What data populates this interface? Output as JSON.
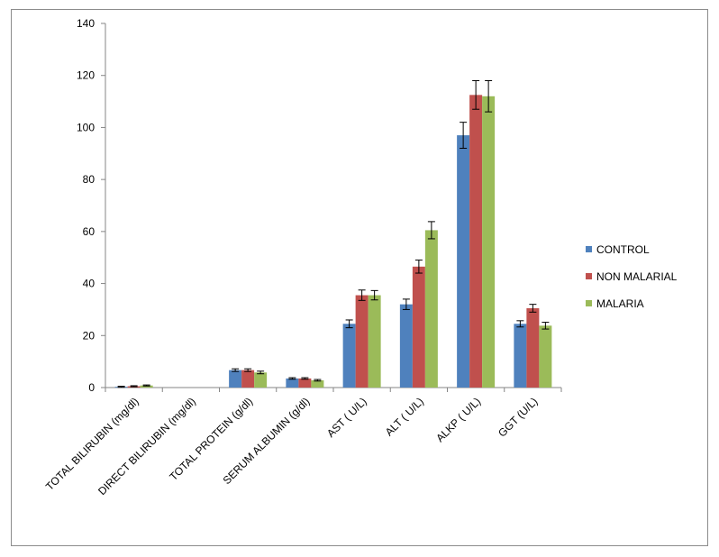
{
  "chart_data": {
    "type": "bar",
    "categories": [
      "TOTAL BILIRUBIN  (mg/dl)",
      "DIRECT BILIRUBIN   (mg/dl)",
      "TOTAL PROTEIN (g/dl)",
      "SERUM ALBUMIN (g/dl)",
      "AST ( U/L)",
      "ALT  ( U/L)",
      "ALKP ( U/L)",
      "GGT (U/L)"
    ],
    "series": [
      {
        "name": "CONTROL",
        "color": "#4f81bd",
        "values": [
          0.3,
          0,
          6.7,
          3.5,
          24.5,
          32,
          97,
          24.5
        ],
        "errors": [
          0.2,
          0,
          0.5,
          0.3,
          1.5,
          2,
          5,
          1.2
        ]
      },
      {
        "name": "NON MALARIAL",
        "color": "#c0504d",
        "values": [
          0.5,
          0,
          6.7,
          3.5,
          35.5,
          46.5,
          112.5,
          30.5
        ],
        "errors": [
          0.2,
          0,
          0.5,
          0.3,
          2,
          2.5,
          5.5,
          1.5
        ]
      },
      {
        "name": "MALARIA",
        "color": "#9bbb59",
        "values": [
          0.8,
          0,
          5.8,
          2.8,
          35.5,
          60.5,
          112,
          23.8
        ],
        "errors": [
          0.2,
          0,
          0.5,
          0.3,
          1.8,
          3.3,
          6,
          1.3
        ]
      }
    ],
    "yticks": [
      "0",
      "20",
      "40",
      "60",
      "80",
      "100",
      "120",
      "140"
    ],
    "ylim": [
      0,
      140
    ],
    "grid": false,
    "legend": "right",
    "title": "",
    "xlabel": "",
    "ylabel": ""
  }
}
